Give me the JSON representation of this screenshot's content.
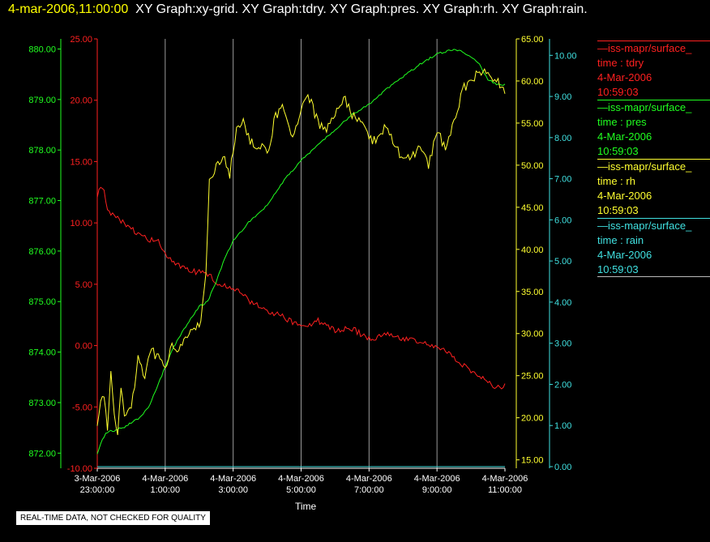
{
  "header": {
    "timestamp": "4-mar-2006,11:00:00",
    "graphs": "XY Graph:xy-grid.  XY Graph:tdry.  XY Graph:pres.  XY Graph:rh.  XY Graph:rain."
  },
  "disclaimer": "REAL-TIME DATA, NOT CHECKED FOR QUALITY",
  "legend": [
    {
      "line1": "—iss-mapr/surface_",
      "line2": "time : tdry",
      "line3": "4-Mar-2006",
      "line4": "10:59:03",
      "color": "#ff2020"
    },
    {
      "line1": "—iss-mapr/surface_",
      "line2": "time : pres",
      "line3": "4-Mar-2006",
      "line4": "10:59:03",
      "color": "#20ff20"
    },
    {
      "line1": "—iss-mapr/surface_",
      "line2": "time : rh",
      "line3": "4-Mar-2006",
      "line4": "10:59:03",
      "color": "#ffff30"
    },
    {
      "line1": "—iss-mapr/surface_",
      "line2": "time : rain",
      "line3": "4-Mar-2006",
      "line4": "10:59:03",
      "color": "#40e0e0"
    }
  ],
  "chart_data": {
    "type": "line",
    "xlabel": "Time",
    "x_range": [
      "3-Mar-2006 23:00:00",
      "4-Mar-2006 11:00:00"
    ],
    "x_ticks": [
      {
        "date": "3-Mar-2006",
        "time": "23:00:00"
      },
      {
        "date": "4-Mar-2006",
        "time": "1:00:00"
      },
      {
        "date": "4-Mar-2006",
        "time": "3:00:00"
      },
      {
        "date": "4-Mar-2006",
        "time": "5:00:00"
      },
      {
        "date": "4-Mar-2006",
        "time": "7:00:00"
      },
      {
        "date": "4-Mar-2006",
        "time": "9:00:00"
      },
      {
        "date": "4-Mar-2006",
        "time": "11:00:00"
      }
    ],
    "grid": "vertical",
    "axes": {
      "pres": {
        "color": "#20ff20",
        "ylim": [
          871.7,
          880.2
        ],
        "ticks": [
          "872.00",
          "873.00",
          "874.00",
          "875.00",
          "876.00",
          "877.00",
          "878.00",
          "879.00",
          "880.00"
        ]
      },
      "tdry": {
        "color": "#ff2020",
        "ylim": [
          -10,
          25
        ],
        "ticks": [
          "-10.00",
          "-5.00",
          "0.00",
          "5.00",
          "10.00",
          "15.00",
          "20.00",
          "25.00"
        ]
      },
      "rh": {
        "color": "#ffff30",
        "ylim": [
          14,
          65
        ],
        "ticks": [
          "15.00",
          "20.00",
          "25.00",
          "30.00",
          "35.00",
          "40.00",
          "45.00",
          "50.00",
          "55.00",
          "60.00",
          "65.00"
        ]
      },
      "rain": {
        "color": "#40e0e0",
        "ylim": [
          -0.04,
          10.4
        ],
        "ticks": [
          "0.00",
          "1.00",
          "2.00",
          "3.00",
          "4.00",
          "5.00",
          "6.00",
          "7.00",
          "8.00",
          "9.00",
          "10.00"
        ]
      }
    },
    "series": [
      {
        "name": "tdry",
        "axis": "tdry",
        "color": "#ff2020",
        "hours": [
          0,
          0.1,
          0.2,
          0.3,
          0.5,
          0.75,
          1,
          1.25,
          1.5,
          1.75,
          2,
          2.25,
          2.5,
          2.75,
          3,
          3.25,
          3.5,
          3.75,
          4,
          4.5,
          5,
          5.5,
          6,
          6.5,
          7,
          7.5,
          8,
          8.5,
          9,
          9.5,
          10,
          10.25,
          10.5,
          10.75,
          11,
          11.25,
          11.5,
          11.75,
          12
        ],
        "values": [
          12,
          13,
          12.5,
          11,
          10.5,
          10,
          9.5,
          9,
          8.6,
          8.7,
          7.5,
          6.7,
          6.3,
          6.1,
          6,
          5.8,
          5.2,
          5,
          4.7,
          3.6,
          2.9,
          2.3,
          1.5,
          2,
          1.2,
          1.4,
          0.5,
          1,
          0.6,
          0.3,
          0,
          -0.5,
          -1,
          -1.5,
          -2,
          -2.5,
          -3,
          -3.5,
          -3.3
        ]
      },
      {
        "name": "pres",
        "axis": "pres",
        "color": "#20ff20",
        "hours": [
          0,
          0.1,
          0.25,
          0.5,
          0.75,
          1,
          1.25,
          1.5,
          1.75,
          2,
          2.25,
          2.5,
          2.75,
          3,
          3.25,
          3.5,
          3.75,
          4,
          4.5,
          5,
          5.5,
          6,
          6.5,
          7,
          7.5,
          8,
          8.5,
          9,
          9.5,
          10,
          10.5,
          10.75,
          11,
          11.25,
          11.5,
          11.75,
          12
        ],
        "values": [
          872,
          872.2,
          872.4,
          872.45,
          872.5,
          872.6,
          872.7,
          872.9,
          873.3,
          873.7,
          874.1,
          874.4,
          874.65,
          874.9,
          875,
          875.4,
          875.85,
          876.2,
          876.6,
          876.9,
          877.4,
          877.8,
          878.1,
          878.4,
          878.7,
          878.9,
          879.2,
          879.45,
          879.7,
          879.9,
          880,
          879.95,
          879.85,
          879.7,
          879.4,
          879.3,
          879.3
        ]
      },
      {
        "name": "rh",
        "axis": "rh",
        "color": "#ffff30",
        "hours": [
          0,
          0.1,
          0.2,
          0.3,
          0.4,
          0.5,
          0.6,
          0.7,
          0.8,
          1,
          1.2,
          1.4,
          1.6,
          1.8,
          2,
          2.2,
          2.4,
          2.6,
          2.8,
          3,
          3.1,
          3.2,
          3.3,
          3.5,
          3.7,
          3.9,
          4.1,
          4.3,
          4.5,
          4.7,
          4.9,
          5,
          5.25,
          5.5,
          5.75,
          6,
          6.25,
          6.5,
          6.75,
          7,
          7.25,
          7.5,
          7.75,
          8,
          8.25,
          8.5,
          8.75,
          9,
          9.25,
          9.5,
          9.75,
          10,
          10.25,
          10.5,
          10.75,
          11,
          11.25,
          11.5,
          11.75,
          12
        ],
        "values": [
          19,
          22,
          23,
          18,
          25,
          20,
          18,
          24,
          20,
          21,
          27,
          25,
          28,
          27,
          26,
          29,
          28,
          30,
          30,
          31,
          33,
          37,
          48,
          50,
          51,
          49,
          54,
          55,
          53,
          52,
          52,
          51,
          56,
          57,
          53,
          57,
          58,
          55,
          54,
          56,
          58,
          56,
          55,
          53,
          53,
          55,
          52,
          51,
          51,
          52,
          50,
          54,
          52,
          55,
          59,
          60,
          61,
          61,
          60,
          59
        ]
      },
      {
        "name": "rain",
        "axis": "rain",
        "color": "#40e0e0",
        "hours": [
          0,
          12
        ],
        "values": [
          0,
          0
        ]
      }
    ]
  }
}
